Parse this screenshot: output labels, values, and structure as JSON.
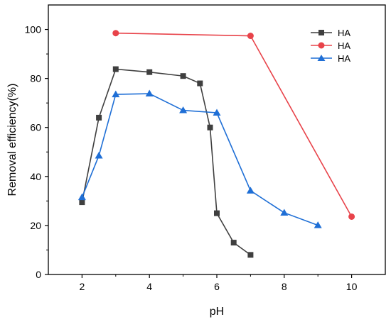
{
  "chart_data": {
    "type": "line",
    "xlabel": "pH",
    "ylabel": "Removal efficiency(%)",
    "xlim": [
      1,
      11.0
    ],
    "ylim": [
      0,
      110
    ],
    "xticks": [
      2,
      4,
      6,
      8,
      10
    ],
    "yticks": [
      0,
      20,
      40,
      60,
      80,
      100
    ],
    "grid": false,
    "legend_position": "top-right",
    "series": [
      {
        "name": "HA",
        "color": "#3f3f3f",
        "marker": "square",
        "x": [
          2,
          2.5,
          3,
          4,
          5,
          5.5,
          5.8,
          6,
          6.5,
          7
        ],
        "y": [
          29.5,
          64,
          83.8,
          82.6,
          81,
          78,
          60,
          25,
          13,
          8
        ]
      },
      {
        "name": "HA",
        "color": "#e8434a",
        "marker": "circle",
        "x": [
          3,
          7,
          10
        ],
        "y": [
          98.5,
          97.4,
          23.6
        ]
      },
      {
        "name": "HA",
        "color": "#1f6fd6",
        "marker": "triangle",
        "x": [
          2,
          2.5,
          3,
          4,
          5,
          6,
          7,
          8,
          9
        ],
        "y": [
          31.5,
          48.5,
          73.5,
          73.8,
          67,
          66,
          34.2,
          25.2,
          20.1
        ]
      }
    ]
  }
}
